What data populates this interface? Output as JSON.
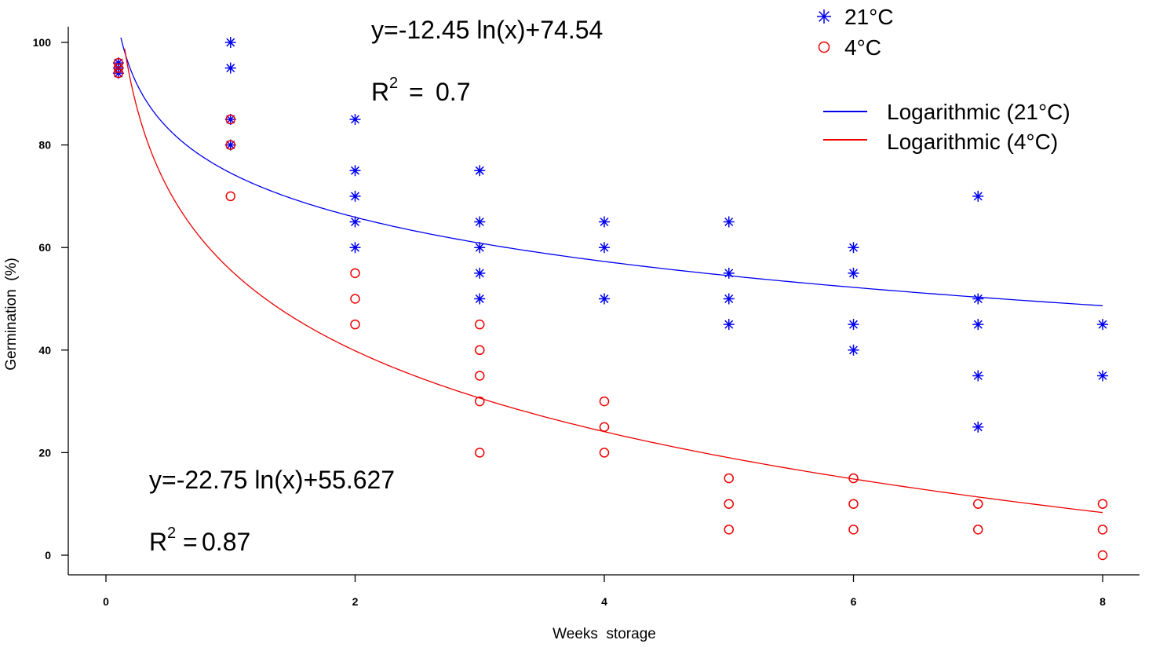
{
  "chart_data": {
    "type": "scatter",
    "xlabel": "Weeks  storage",
    "ylabel": "Germination  (%)",
    "xlim": [
      0,
      8
    ],
    "ylim": [
      0,
      100
    ],
    "xticks": [
      0,
      2,
      4,
      6,
      8
    ],
    "yticks": [
      0,
      20,
      40,
      60,
      80,
      100
    ],
    "grid": false,
    "series": [
      {
        "name": "21°C",
        "marker": "asterisk",
        "color": "#0000ee",
        "points": [
          [
            0.1,
            94
          ],
          [
            0.1,
            95
          ],
          [
            0.1,
            96
          ],
          [
            1,
            100
          ],
          [
            1,
            95
          ],
          [
            1,
            85
          ],
          [
            1,
            80
          ],
          [
            2,
            85
          ],
          [
            2,
            75
          ],
          [
            2,
            70
          ],
          [
            2,
            65
          ],
          [
            2,
            60
          ],
          [
            3,
            75
          ],
          [
            3,
            65
          ],
          [
            3,
            60
          ],
          [
            3,
            55
          ],
          [
            3,
            50
          ],
          [
            4,
            65
          ],
          [
            4,
            60
          ],
          [
            4,
            50
          ],
          [
            5,
            65
          ],
          [
            5,
            55
          ],
          [
            5,
            50
          ],
          [
            5,
            45
          ],
          [
            6,
            60
          ],
          [
            6,
            55
          ],
          [
            6,
            45
          ],
          [
            6,
            40
          ],
          [
            7,
            70
          ],
          [
            7,
            50
          ],
          [
            7,
            45
          ],
          [
            7,
            35
          ],
          [
            7,
            25
          ],
          [
            8,
            45
          ],
          [
            8,
            35
          ]
        ]
      },
      {
        "name": "4°C",
        "marker": "circle",
        "color": "#ee0000",
        "points": [
          [
            0.1,
            94
          ],
          [
            0.1,
            95
          ],
          [
            0.1,
            96
          ],
          [
            1,
            85
          ],
          [
            1,
            80
          ],
          [
            1,
            70
          ],
          [
            2,
            55
          ],
          [
            2,
            50
          ],
          [
            2,
            45
          ],
          [
            3,
            45
          ],
          [
            3,
            40
          ],
          [
            3,
            35
          ],
          [
            3,
            30
          ],
          [
            3,
            20
          ],
          [
            4,
            30
          ],
          [
            4,
            25
          ],
          [
            4,
            20
          ],
          [
            5,
            15
          ],
          [
            5,
            10
          ],
          [
            5,
            5
          ],
          [
            6,
            15
          ],
          [
            6,
            10
          ],
          [
            6,
            5
          ],
          [
            7,
            10
          ],
          [
            7,
            5
          ],
          [
            8,
            10
          ],
          [
            8,
            5
          ],
          [
            8,
            0
          ]
        ]
      }
    ],
    "trendlines": [
      {
        "name": "Logarithmic (21°C)",
        "color": "#0000ee",
        "a": -12.45,
        "b": 74.54,
        "x_from": 0.12,
        "x_to": 8
      },
      {
        "name": "Logarithmic (4°C)",
        "color": "#ee0000",
        "a": -22.75,
        "b": 55.627,
        "x_from": 0.15,
        "x_to": 8
      }
    ],
    "annotations": {
      "eq_21": "y=-12.45 ln(x)+74.54",
      "r2_21_value": "0.7",
      "eq_4": "y=-22.75 ln(x)+55.627",
      "r2_4_value": "0.87",
      "r2_prefix": "R",
      "r2_exp": "2",
      "r2_eq": "="
    },
    "legend_points": [
      {
        "label": "21°C",
        "marker": "asterisk",
        "color": "#0000ee"
      },
      {
        "label": "4°C",
        "marker": "circle",
        "color": "#ee0000"
      }
    ],
    "legend_lines": [
      {
        "label": "Logarithmic (21°C)",
        "color": "#0000ee"
      },
      {
        "label": "Logarithmic (4°C)",
        "color": "#ee0000"
      }
    ],
    "legend_position": "top-right"
  }
}
